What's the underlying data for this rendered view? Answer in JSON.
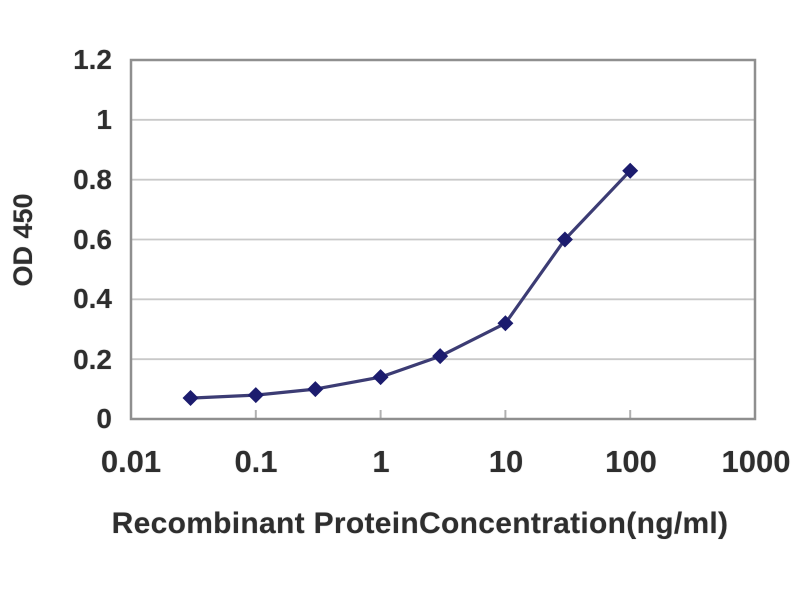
{
  "colors": {
    "background": "#ffffff",
    "gridline": "#c9c9c9",
    "axis_border": "#8f8f8f",
    "minor_tick": "#b0b0b0",
    "text": "#2e2e2e",
    "series_marker": "#1c1c6e",
    "series_line": "#3c3c74"
  },
  "chart_data": {
    "type": "line",
    "title": "",
    "xlabel": "Recombinant ProteinConcentration(ng/ml)",
    "ylabel": "OD 450",
    "x_scale": "log",
    "xlim": [
      0.01,
      1000
    ],
    "ylim": [
      0,
      1.2
    ],
    "x_tick_values": [
      0.01,
      0.1,
      1,
      10,
      100,
      1000
    ],
    "x_tick_labels": [
      "0.01",
      "0.1",
      "1",
      "10",
      "100",
      "1000"
    ],
    "y_tick_values": [
      0,
      0.2,
      0.4,
      0.6,
      0.8,
      1,
      1.2
    ],
    "y_tick_labels": [
      "0",
      "0.2",
      "0.4",
      "0.6",
      "0.8",
      "1",
      "1.2"
    ],
    "grid": "horizontal",
    "legend": "none",
    "series": [
      {
        "marker": "diamond",
        "marker_color": "#1c1c6e",
        "line_color": "#3c3c74",
        "x": [
          0.03,
          0.1,
          0.3,
          1,
          3,
          10,
          30,
          100
        ],
        "y": [
          0.07,
          0.08,
          0.1,
          0.14,
          0.21,
          0.32,
          0.6,
          0.83
        ]
      }
    ]
  }
}
